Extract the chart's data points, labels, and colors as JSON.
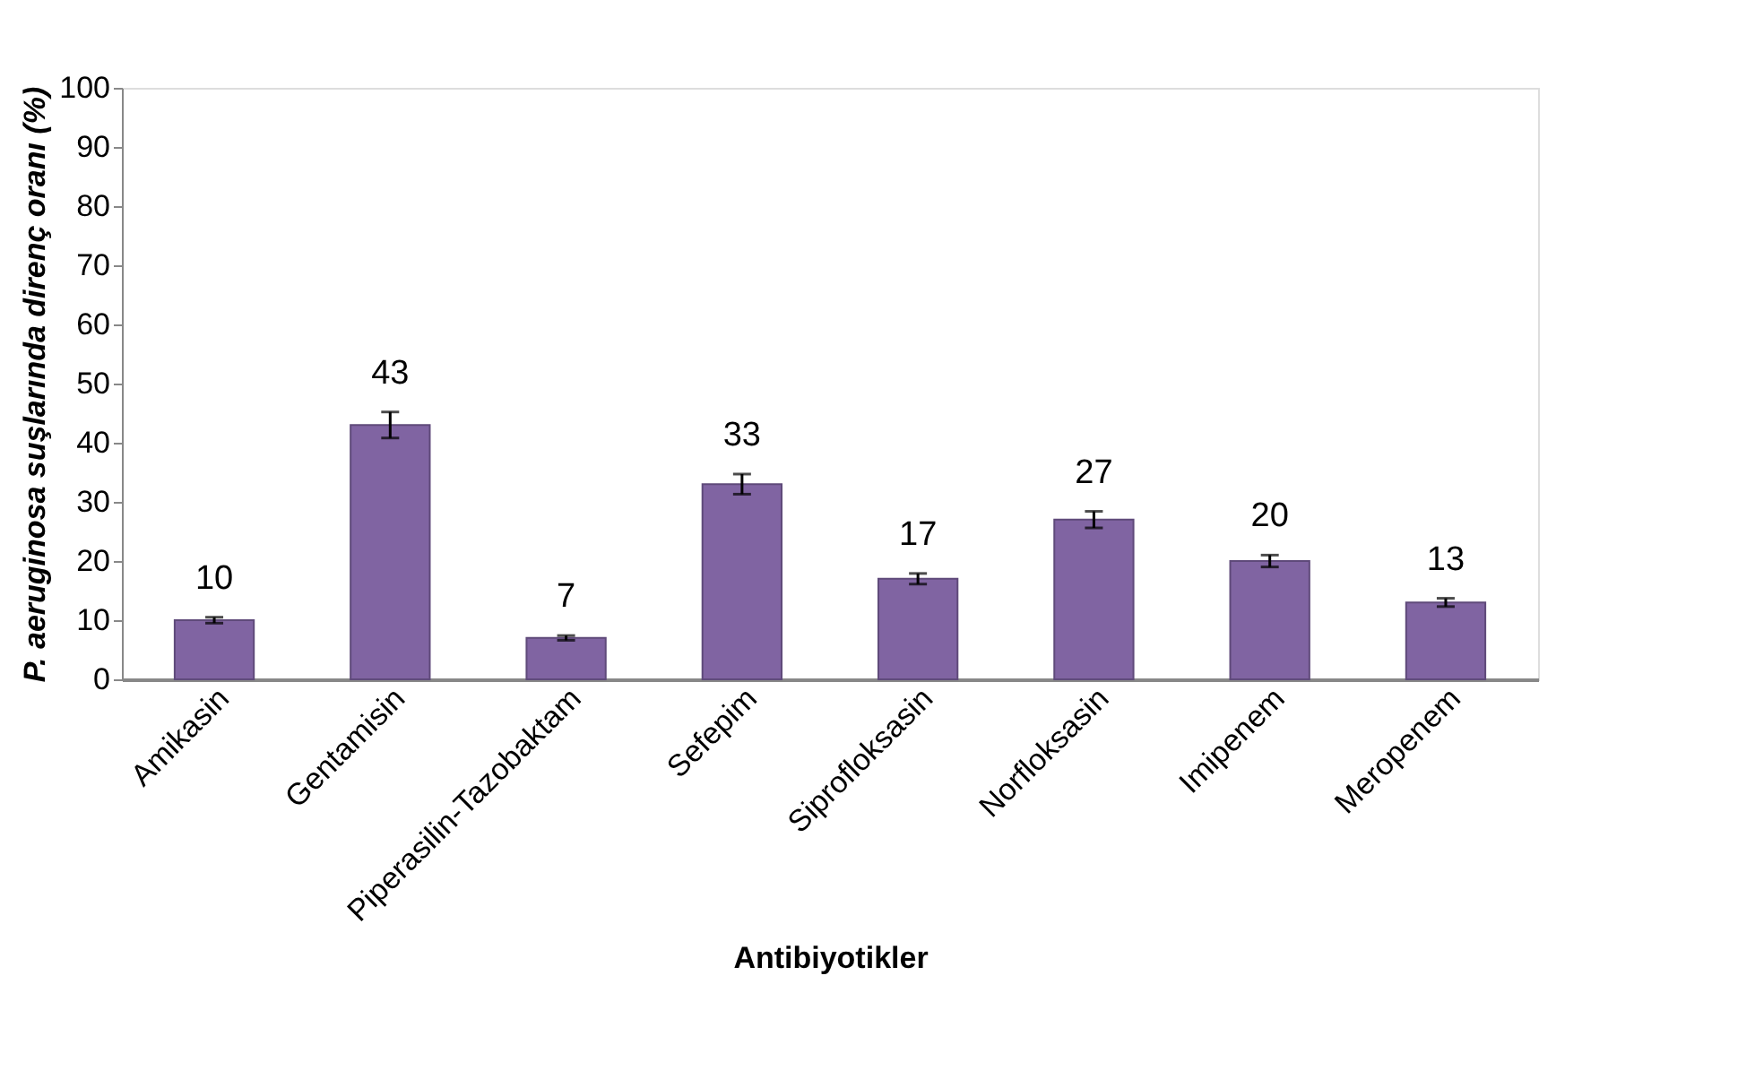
{
  "chart_data": {
    "type": "bar",
    "xlabel": "Antibiyotikler",
    "ylabel": "P. aeruginosa suşlarında direnç oranı (%)",
    "categories": [
      "Amikasin",
      "Gentamisin",
      "Piperasilin-Tazobaktam",
      "Sefepim",
      "Siprofloksasin",
      "Norfloksasin",
      "Imipenem",
      "Meropenem"
    ],
    "values": [
      10,
      43,
      7,
      33,
      17,
      27,
      20,
      13
    ],
    "errors": [
      0.5,
      2.2,
      0.4,
      1.7,
      0.9,
      1.4,
      1.0,
      0.7
    ],
    "color": "#8064a2",
    "ylim": [
      0,
      100
    ],
    "yticks": [
      0,
      10,
      20,
      30,
      40,
      50,
      60,
      70,
      80,
      90,
      100
    ],
    "data_labels": true,
    "grid": false
  }
}
